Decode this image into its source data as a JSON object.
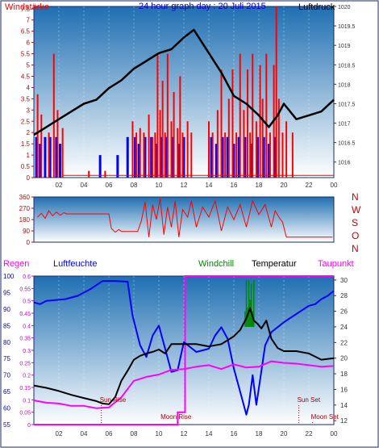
{
  "title": "24 hour graph day : 20 Juli 2015",
  "colors": {
    "frame": "#1a2a6e",
    "sky_top": "#1f6fb2",
    "sky_bottom": "#ffffff",
    "wind_bar": "#ff0000",
    "gust_bar": "#0000ff",
    "pressure": "#000000",
    "direction": "#ff0000",
    "temperature": "#000000",
    "humidity": "#0000ff",
    "dewpoint": "#ff00ff",
    "windchill": "#008800",
    "rain": "#ff00ff",
    "sun_marker": "#aa0000"
  },
  "chart_data": [
    {
      "type": "bar",
      "name": "wind-and-pressure",
      "labels": {
        "left": "Windstärke",
        "right": "Luftdruck"
      },
      "x_ticks": [
        "02",
        "04",
        "06",
        "08",
        "10",
        "12",
        "14",
        "16",
        "18",
        "20",
        "22",
        "00"
      ],
      "y_left_ticks": [
        "0",
        "0.5",
        "1",
        "1.5",
        "2",
        "2.5",
        "3",
        "3.5",
        "4",
        "4.5",
        "5",
        "5.5",
        "6",
        "6.5",
        "7",
        "7.5"
      ],
      "y_right_ticks": [
        "1016",
        "1016.5",
        "1017",
        "1017.5",
        "1018",
        "1018.5",
        "1019",
        "1019.5",
        "1020"
      ],
      "y_left_range": [
        0,
        7.6
      ],
      "y_right_range": [
        1015.6,
        1020.0
      ],
      "wind_speed": {
        "hours": [
          0.3,
          0.6,
          1.2,
          1.6,
          1.9,
          2.3,
          4.4,
          5.7,
          7.9,
          8.2,
          8.5,
          8.8,
          9.2,
          9.5,
          9.7,
          9.9,
          10.1,
          10.3,
          10.5,
          10.7,
          11.0,
          11.2,
          11.5,
          11.7,
          11.9,
          12.3,
          12.6,
          14.0,
          14.3,
          14.7,
          15.0,
          15.3,
          15.6,
          15.9,
          16.2,
          16.5,
          16.8,
          17.1,
          17.3,
          17.5,
          17.8,
          18.1,
          18.3,
          18.6,
          18.9,
          19.2,
          19.4,
          19.6,
          19.9,
          20.2,
          20.7
        ],
        "values": [
          3.7,
          2.8,
          2.0,
          5.5,
          3.0,
          2.2,
          0.3,
          0.3,
          2.5,
          2.0,
          2.2,
          2.0,
          2.8,
          1.8,
          2.0,
          5.5,
          3.0,
          4.3,
          2.0,
          5.5,
          2.5,
          3.8,
          2.2,
          4.5,
          2.0,
          2.5,
          2.0,
          2.5,
          2.0,
          3.0,
          4.8,
          2.0,
          3.5,
          4.8,
          2.0,
          5.5,
          3.0,
          4.8,
          2.0,
          5.5,
          2.5,
          5.0,
          3.5,
          5.5,
          2.0,
          5.0,
          7.6,
          3.5,
          2.0,
          2.5,
          2.0
        ]
      },
      "wind_gust": {
        "hours": [
          0.2,
          0.5,
          0.9,
          1.3,
          1.8,
          2.1,
          5.3,
          6.7,
          7.5,
          8.1,
          8.4,
          8.9,
          9.4,
          9.8,
          10.2,
          10.6,
          11.1,
          11.6,
          12.0,
          14.2,
          14.6,
          15.1,
          15.5,
          16.0,
          16.4,
          16.9,
          17.4,
          17.9,
          18.4,
          18.8,
          19.3
        ],
        "values": [
          1.8,
          1.5,
          1.8,
          1.8,
          1.8,
          1.5,
          1.0,
          1.0,
          1.8,
          1.8,
          1.5,
          1.8,
          1.8,
          1.5,
          1.8,
          1.8,
          1.8,
          1.5,
          1.8,
          1.8,
          1.5,
          1.8,
          1.8,
          1.5,
          1.8,
          1.8,
          1.5,
          1.8,
          1.8,
          1.5,
          1.8
        ]
      },
      "pressure": {
        "hours": [
          0,
          1,
          2,
          3,
          4,
          5,
          6,
          7,
          8,
          9,
          10,
          11,
          12,
          12.8,
          14,
          15,
          16,
          17,
          18,
          18.8,
          19.5,
          20,
          21,
          22,
          23,
          24
        ],
        "values": [
          1016.7,
          1016.9,
          1017.1,
          1017.3,
          1017.5,
          1017.6,
          1017.9,
          1018.1,
          1018.4,
          1018.6,
          1018.8,
          1018.9,
          1019.2,
          1019.4,
          1018.8,
          1018.3,
          1017.7,
          1017.5,
          1017.2,
          1016.9,
          1017.2,
          1017.5,
          1017.1,
          1017.2,
          1017.3,
          1017.6
        ]
      }
    },
    {
      "type": "line",
      "name": "wind-direction",
      "labels_right": [
        "N",
        "W",
        "S",
        "O",
        "N"
      ],
      "y_ticks": [
        "0",
        "90",
        "180",
        "270",
        "360"
      ],
      "y_range": [
        0,
        360
      ],
      "hours": [
        0.3,
        0.6,
        0.9,
        1.2,
        1.5,
        1.8,
        2.1,
        2.4,
        2.6,
        6.0,
        6.2,
        6.5,
        6.8,
        7.0,
        8.3,
        8.6,
        8.9,
        9.2,
        9.5,
        9.8,
        10.1,
        10.4,
        10.7,
        11.0,
        11.3,
        11.6,
        11.9,
        12.3,
        12.6,
        13.0,
        13.5,
        14.0,
        14.5,
        15.0,
        15.5,
        16.0,
        16.5,
        17.0,
        17.5,
        18.0,
        18.5,
        19.0,
        19.3,
        19.6,
        19.9,
        20.2,
        21.0,
        22.0,
        23.0,
        23.9
      ],
      "values": [
        200,
        230,
        190,
        250,
        210,
        240,
        215,
        235,
        225,
        225,
        110,
        80,
        100,
        85,
        85,
        170,
        320,
        40,
        300,
        180,
        350,
        60,
        280,
        120,
        330,
        40,
        260,
        200,
        330,
        120,
        280,
        200,
        330,
        90,
        280,
        180,
        300,
        120,
        330,
        220,
        300,
        120,
        250,
        200,
        160,
        40,
        40,
        40,
        40,
        40
      ]
    },
    {
      "type": "line",
      "name": "temperature-humidity",
      "legend": [
        "Regen",
        "Luftfeuchte",
        "Windchill",
        "Temperatur",
        "Taupunkt"
      ],
      "y_left_humidity_ticks": [
        "55",
        "60",
        "65",
        "70",
        "75",
        "80",
        "85",
        "90",
        "95",
        "100"
      ],
      "y_left_rain_ticks": [
        "0",
        "0.05",
        "0.1",
        "0.15",
        "0.2",
        "0.25",
        "0.3",
        "0.35",
        "0.4",
        "0.45",
        "0.5",
        "0.55",
        "0.6"
      ],
      "y_right_ticks": [
        "12",
        "14",
        "16",
        "18",
        "20",
        "22",
        "24",
        "26",
        "28",
        "30"
      ],
      "humidity_range": [
        55,
        100
      ],
      "temp_range": [
        11.5,
        30.5
      ],
      "rain_range": [
        0,
        0.6
      ],
      "temperature": {
        "hours": [
          0,
          1,
          2,
          3,
          4,
          5,
          5.5,
          6,
          6.5,
          7,
          7.5,
          8,
          8.5,
          9,
          9.5,
          10,
          10.5,
          11,
          12,
          13,
          14,
          15,
          16,
          16.5,
          17,
          17.3,
          17.6,
          17.9,
          18.2,
          18.6,
          19,
          19.5,
          20,
          21,
          22,
          23,
          24
        ],
        "values": [
          16.5,
          16.2,
          15.8,
          15.3,
          14.9,
          14.5,
          14.2,
          14.1,
          15.0,
          17.1,
          18.4,
          19.8,
          20.3,
          20.6,
          20.8,
          21.1,
          20.6,
          21.8,
          21.8,
          21.8,
          21.5,
          21.8,
          22.8,
          23.6,
          25.1,
          26.4,
          24.8,
          24.4,
          23.8,
          24.8,
          22.5,
          21.3,
          20.9,
          20.9,
          20.6,
          19.8,
          20.0
        ]
      },
      "humidity": {
        "hours": [
          0,
          0.5,
          1.0,
          2.5,
          3.5,
          4.5,
          5.5,
          6.5,
          7.5,
          7.9,
          8.5,
          9.0,
          9.5,
          10.0,
          10.5,
          11.0,
          11.5,
          12.0,
          12.5,
          13.0,
          14.0,
          14.5,
          15.0,
          15.5,
          16.0,
          16.5,
          17.0,
          17.2,
          17.5,
          17.8,
          18.0,
          18.5,
          19.0,
          20.0,
          21.0,
          22.0,
          22.5,
          23.0,
          23.5,
          24.0
        ],
        "values": [
          92,
          91.5,
          92.5,
          93,
          94,
          96,
          98.5,
          98.5,
          98.3,
          88,
          79,
          75.5,
          82,
          85,
          78,
          71,
          71.5,
          80,
          78.5,
          77,
          78,
          82,
          84.5,
          81,
          72,
          65,
          58,
          61,
          70,
          61,
          66,
          79,
          83,
          86,
          88.5,
          91,
          91.5,
          93,
          94,
          95.5
        ]
      },
      "dewpoint": {
        "hours": [
          0,
          1,
          2,
          3,
          4,
          5,
          6,
          7,
          8,
          9,
          10,
          11,
          12,
          13,
          14,
          15,
          16,
          17,
          18,
          19,
          20,
          21,
          22,
          23,
          24
        ],
        "values": [
          14.6,
          14.3,
          14.2,
          13.9,
          13.9,
          13.6,
          13.7,
          15.0,
          17.1,
          17.6,
          17.9,
          18.5,
          18.6,
          18.9,
          19.1,
          18.6,
          19.2,
          18.8,
          18.9,
          19.6,
          19.4,
          19.3,
          19.1,
          18.9,
          19.0
        ]
      },
      "windchill": {
        "hours": [
          16.9,
          17.0,
          17.1,
          17.2,
          17.3,
          17.4,
          17.5,
          17.6
        ],
        "values": [
          26.0,
          30.0,
          26.5,
          30.0,
          27.5,
          29.5,
          26.0,
          30.0
        ]
      },
      "rain": {
        "hours": [
          0,
          11.5,
          11.5,
          12.1,
          12.1,
          24
        ],
        "values": [
          0,
          0,
          0.05,
          0.05,
          0.6,
          0.6
        ]
      },
      "annotations": {
        "sun_rise": {
          "label": "Sun Rise",
          "hour": 5.4
        },
        "moon_rise": {
          "label": "Moon Rise",
          "hour": 11.5
        },
        "sun_set": {
          "label": "Sun Set",
          "hour": 21.2
        },
        "moon_set": {
          "label": "Moon Set",
          "hour": 22.3
        }
      }
    }
  ]
}
